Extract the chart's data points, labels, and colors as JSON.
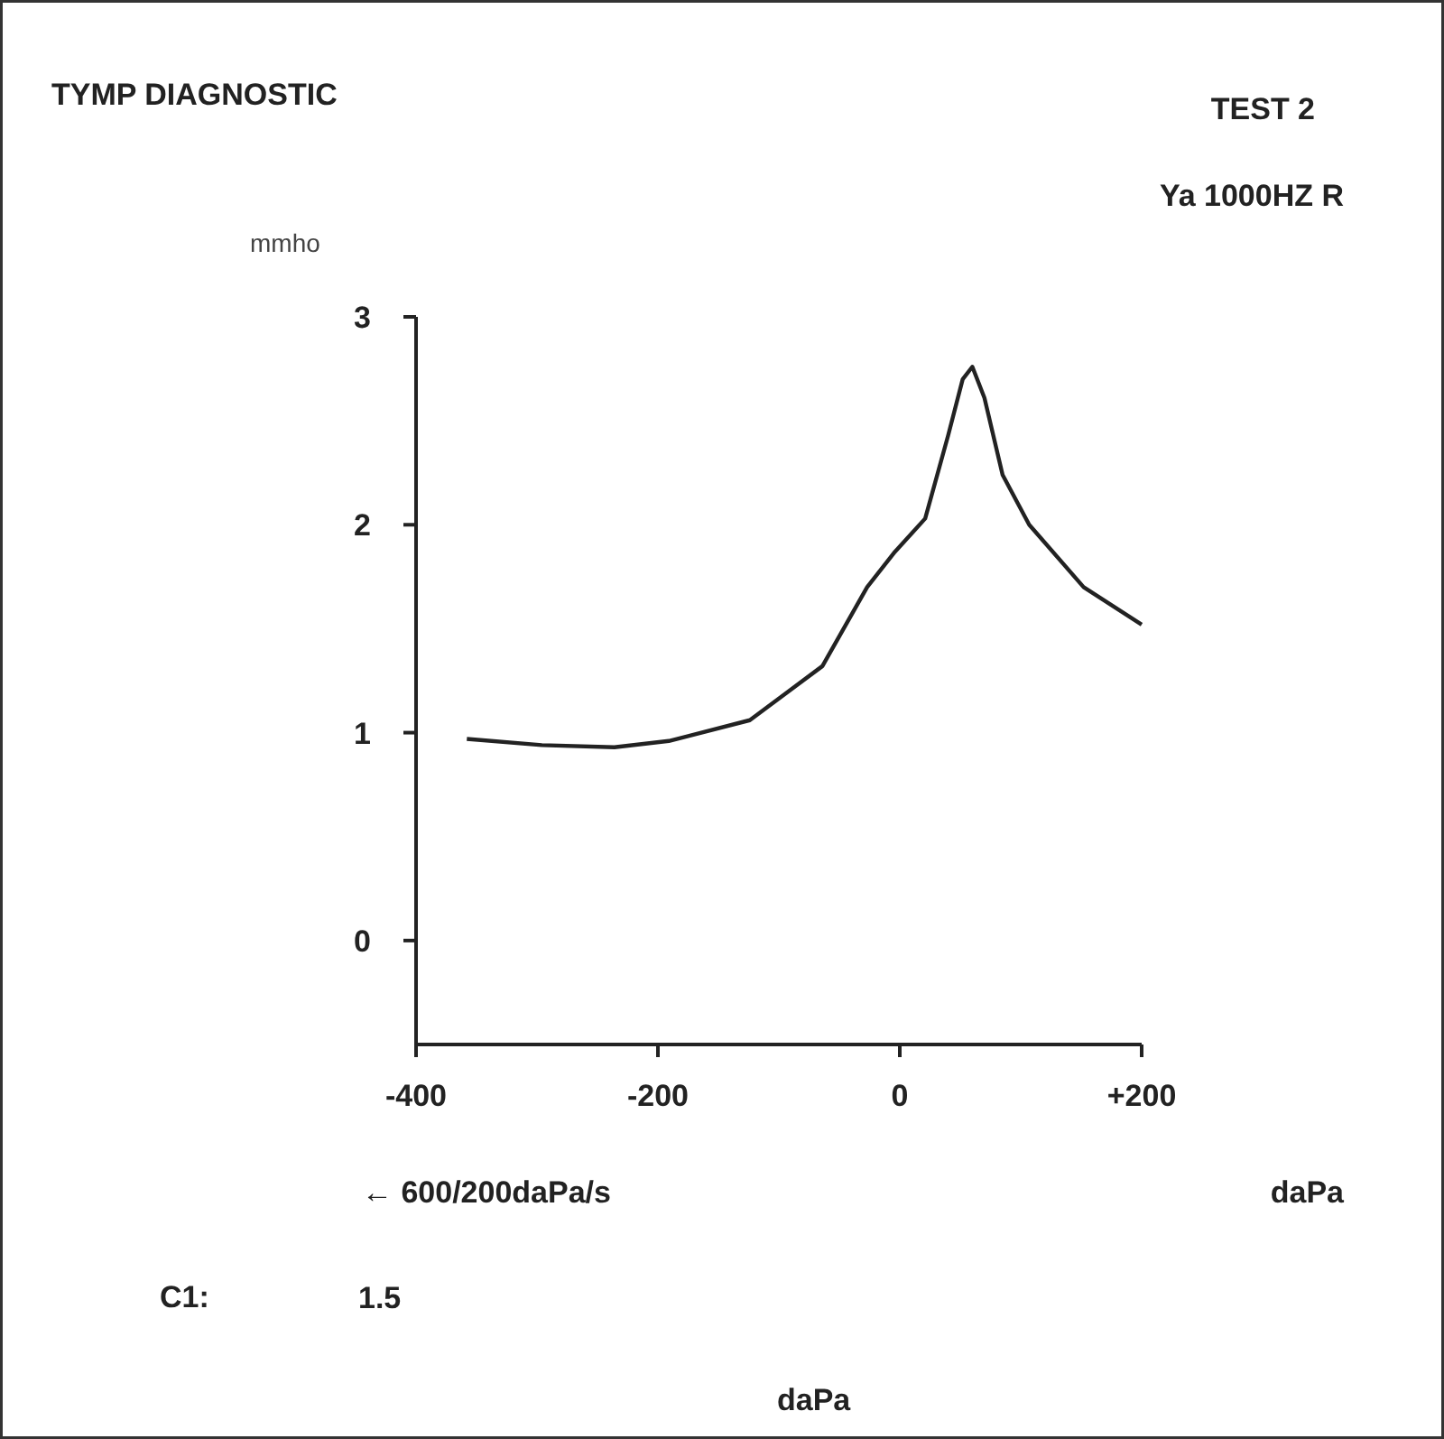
{
  "chart_data": {
    "type": "line",
    "title": "TYMP DIAGNOSTIC",
    "subtitle": "TEST 2",
    "ylabel": "mmho",
    "xlabel": "daPa",
    "annotations": [
      "Ya 1000HZ R",
      "← 600/200daPa/s",
      "C1:",
      "1.5",
      "daPa"
    ],
    "x": [
      -358,
      -296,
      -236,
      -191,
      -124,
      -64,
      -27,
      -4,
      21,
      40,
      52,
      60,
      70,
      85,
      107,
      152,
      200
    ],
    "series": [
      {
        "color": "#222222",
        "values": [
          0.97,
          0.94,
          0.93,
          0.96,
          1.06,
          1.32,
          1.7,
          1.87,
          2.03,
          2.43,
          2.7,
          2.76,
          2.61,
          2.24,
          2.0,
          1.7,
          1.52
        ]
      }
    ],
    "xlim": [
      -400,
      200
    ],
    "ylim": [
      -0.5,
      3
    ],
    "xticks": [
      -400,
      -200,
      0,
      {
        "value": 200,
        "label": "+200"
      }
    ],
    "yticks": [
      0,
      1,
      2,
      3
    ],
    "grid": false,
    "marker": "none",
    "line_style": "solid"
  }
}
